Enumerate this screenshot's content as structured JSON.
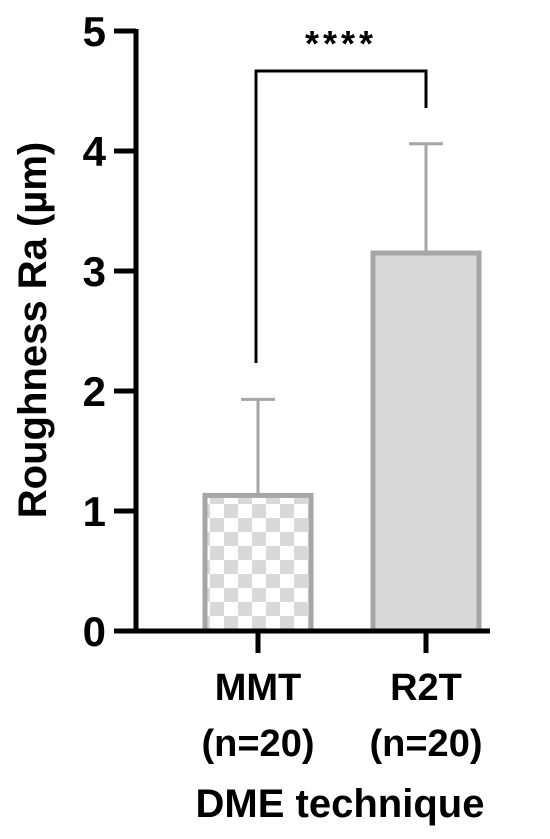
{
  "chart_data": {
    "type": "bar",
    "categories": [
      "MMT",
      "R2T"
    ],
    "category_subtitles": [
      "(n=20)",
      "(n=20)"
    ],
    "values": [
      1.13,
      3.15
    ],
    "error_upper": [
      1.93,
      4.06
    ],
    "xlabel": "DME technique",
    "ylabel": "Roughness Ra (µm)",
    "ylim": [
      0,
      5
    ],
    "yticks": [
      0,
      1,
      2,
      3,
      4,
      5
    ],
    "ytick_labels": [
      "0",
      "1",
      "2",
      "3",
      "4",
      "5"
    ],
    "significance": {
      "between": [
        "MMT",
        "R2T"
      ],
      "label": "****"
    },
    "bar_styles": [
      "checkered",
      "solid"
    ],
    "colors": {
      "bar_edge": "#a6a6a6",
      "bar_fill_solid": "#d9d9d9",
      "checker_light": "#ffffff",
      "checker_dark": "#d9d9d9",
      "error_bar": "#a6a6a6",
      "axis": "#000000"
    },
    "grid": false,
    "legend": "none"
  }
}
